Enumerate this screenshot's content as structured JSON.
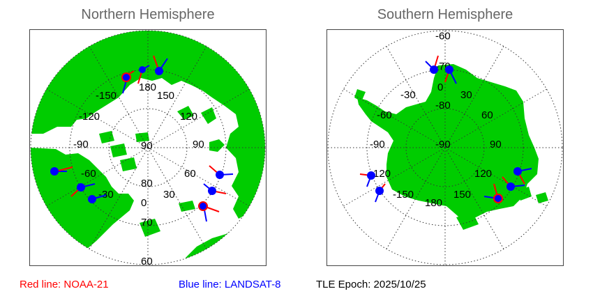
{
  "north": {
    "title": "Northern Hemisphere",
    "lon_labels": [
      "180",
      "-150",
      "150",
      "-120",
      "120",
      "-90",
      "90",
      "-60",
      "60",
      "-30",
      "30",
      "0"
    ],
    "lat_labels": [
      "80",
      "70",
      "60"
    ]
  },
  "south": {
    "title": "Southern Hemisphere",
    "lon_labels": [
      "0",
      "-30",
      "30",
      "-60",
      "60",
      "-90",
      "90",
      "-120",
      "120",
      "-150",
      "150",
      "180"
    ],
    "lat_labels": [
      "-60",
      "-70",
      "-80"
    ]
  },
  "legend": {
    "red": "Red line: NOAA-21",
    "blue": "Blue line: LANDSAT-8",
    "epoch": "TLE Epoch: 2025/10/25"
  },
  "colors": {
    "land": "#00cc00",
    "ocean": "#ffffff",
    "noaa21": "#ff0000",
    "landsat8": "#0000ff"
  }
}
